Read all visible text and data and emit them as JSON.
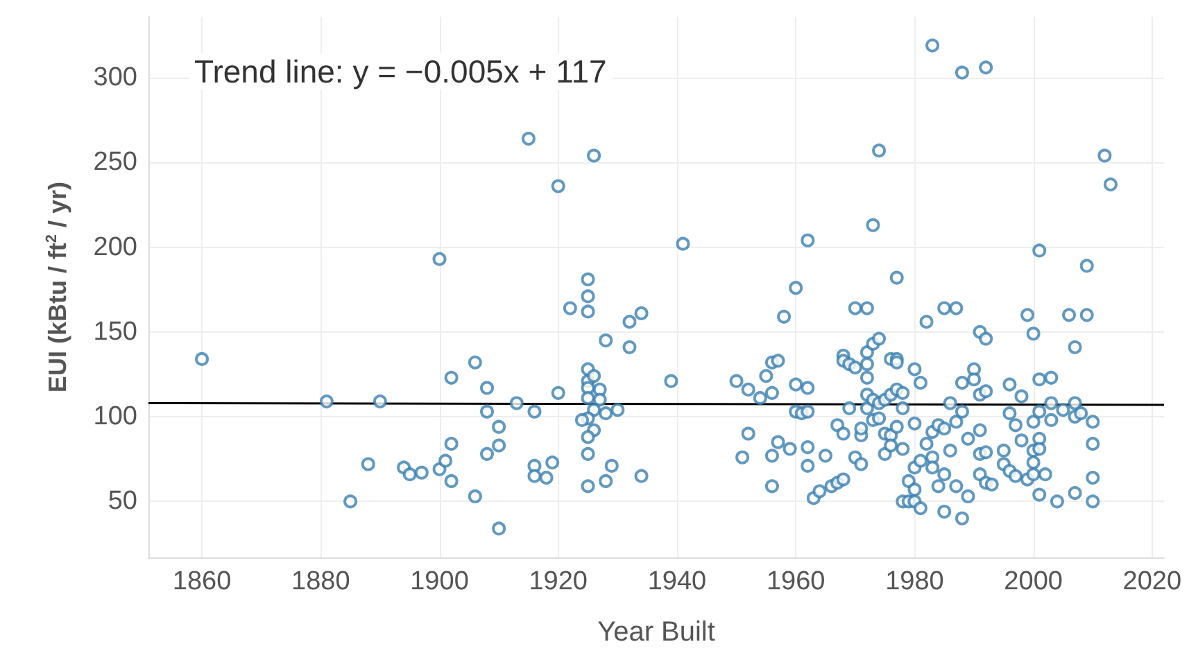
{
  "chart_data": {
    "type": "scatter",
    "xlabel": "Year Built",
    "ylabel": "EUI (kBtu / ft$^{2}$ / yr)",
    "annotations": [
      "Trend line: y = −0.005x + 117"
    ],
    "xlim": [
      1851,
      2022
    ],
    "xticks": [
      1860,
      1880,
      1900,
      1920,
      1940,
      1960,
      1980,
      2000,
      2020
    ],
    "ylim": [
      17,
      336
    ],
    "yticks": [
      50,
      100,
      150,
      200,
      250,
      300
    ],
    "grid": true,
    "marker": "circle",
    "series": [
      {
        "color": "#3a7fb0",
        "x": [
          1860,
          1881,
          1890,
          1888,
          1885,
          1894,
          1895,
          1897,
          1900,
          1900,
          1901,
          1902,
          1902,
          1902,
          1906,
          1906,
          1908,
          1908,
          1908,
          1910,
          1910,
          1910,
          1913,
          1915,
          1916,
          1916,
          1916,
          1918,
          1919,
          1920,
          1920,
          1922,
          1925,
          1925,
          1925,
          1926,
          1925,
          1925,
          1926,
          1925,
          1927,
          1925,
          1927,
          1926,
          1925,
          1924,
          1928,
          1926,
          1925,
          1925,
          1925,
          1930,
          1929,
          1928,
          1928,
          1932,
          1934,
          1932,
          1934,
          1941,
          1939,
          1950,
          1952,
          1951,
          1952,
          1954,
          1955,
          1956,
          1957,
          1956,
          1956,
          1956,
          1957,
          1958,
          1959,
          1960,
          1960,
          1960,
          1961,
          1962,
          1962,
          1962,
          1962,
          1962,
          1963,
          1964,
          1965,
          1966,
          1967,
          1968,
          1967,
          1968,
          1968,
          1968,
          1969,
          1970,
          1969,
          1970,
          1971,
          1971,
          1971,
          1970,
          1972,
          1972,
          1972,
          1972,
          1972,
          1972,
          1973,
          1974,
          1973,
          1974,
          1973,
          1974,
          1973,
          1974,
          1975,
          1976,
          1975,
          1975,
          1976,
          1976,
          1976,
          1977,
          1977,
          1977,
          1978,
          1978,
          1977,
          1978,
          1977,
          1980,
          1981,
          1980,
          1980,
          1981,
          1979,
          1980,
          1978,
          1979,
          1980,
          1981,
          1982,
          1983,
          1982,
          1983,
          1984,
          1983,
          1983,
          1984,
          1985,
          1985,
          1985,
          1985,
          1987,
          1986,
          1986,
          1987,
          1988,
          1988,
          1988,
          1992,
          1987,
          1989,
          1989,
          1988,
          1990,
          1990,
          1991,
          1992,
          1991,
          1992,
          1991,
          1991,
          1992,
          1991,
          1992,
          1993,
          1995,
          1995,
          1996,
          1996,
          1997,
          1998,
          1998,
          1996,
          1997,
          1999,
          1999,
          2000,
          2000,
          2000,
          2000,
          2000,
          2001,
          2001,
          2001,
          2001,
          2001,
          2001,
          2002,
          2003,
          2003,
          2003,
          2005,
          2004,
          2006,
          2007,
          2009,
          2009,
          2007,
          2007,
          2008,
          2010,
          2010,
          2010,
          2010,
          2007,
          2012,
          2013
        ],
        "values": [
          134,
          109,
          109,
          72,
          50,
          70,
          66,
          67,
          193,
          69,
          74,
          62,
          84,
          123,
          132,
          53,
          117,
          103,
          78,
          94,
          83,
          34,
          108,
          264,
          103,
          71,
          65,
          64,
          73,
          236,
          114,
          164,
          181,
          171,
          162,
          254,
          128,
          121,
          124,
          117,
          116,
          111,
          110,
          104,
          99,
          98,
          102,
          92,
          88,
          78,
          59,
          104,
          71,
          62,
          145,
          156,
          161,
          141,
          65,
          202,
          121,
          121,
          116,
          76,
          90,
          111,
          124,
          132,
          133,
          114,
          77,
          59,
          85,
          159,
          81,
          176,
          119,
          103,
          102,
          103,
          117,
          204,
          82,
          71,
          52,
          56,
          77,
          59,
          61,
          63,
          95,
          90,
          136,
          133,
          131,
          129,
          105,
          76,
          72,
          89,
          93,
          164,
          164,
          138,
          131,
          123,
          113,
          105,
          143,
          146,
          213,
          257,
          98,
          99,
          110,
          108,
          110,
          113,
          78,
          90,
          89,
          83,
          134,
          134,
          132,
          116,
          114,
          105,
          94,
          81,
          182,
          128,
          120,
          96,
          70,
          74,
          62,
          57,
          50,
          50,
          50,
          46,
          156,
          319,
          84,
          91,
          95,
          76,
          70,
          59,
          66,
          93,
          44,
          164,
          164,
          80,
          108,
          97,
          103,
          120,
          303,
          306,
          59,
          87,
          53,
          40,
          128,
          122,
          150,
          146,
          113,
          115,
          92,
          78,
          79,
          66,
          61,
          60,
          80,
          72,
          119,
          102,
          95,
          86,
          112,
          68,
          65,
          63,
          160,
          149,
          97,
          80,
          73,
          66,
          198,
          122,
          103,
          87,
          81,
          54,
          66,
          123,
          108,
          98,
          104,
          50,
          160,
          141,
          160,
          189,
          108,
          100,
          102,
          97,
          84,
          64,
          50,
          55,
          254,
          237
        ]
      },
      {
        "type": "line",
        "color": "#000000",
        "line_style": "solid",
        "marker": "none",
        "x": [
          1851,
          2022
        ],
        "values": [
          108,
          107
        ]
      }
    ]
  }
}
